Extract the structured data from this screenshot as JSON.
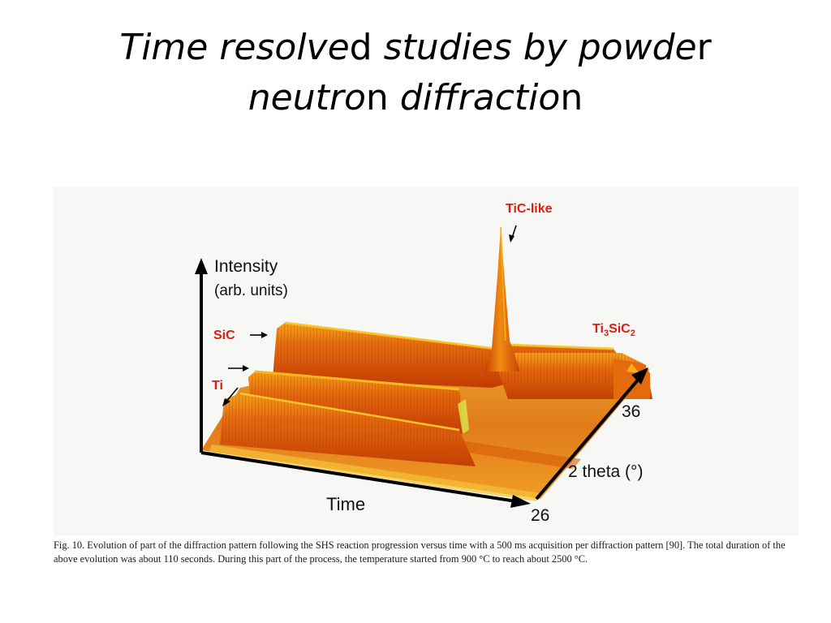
{
  "slide": {
    "title_runs": [
      {
        "text": "Time resolve",
        "italic": true
      },
      {
        "text": "d ",
        "italic": false
      },
      {
        "text": "studies by powde",
        "italic": true
      },
      {
        "text": "r",
        "italic": false
      },
      {
        "text": "neutro",
        "italic": true,
        "line_break_before": true
      },
      {
        "text": "n ",
        "italic": false
      },
      {
        "text": "diffractio",
        "italic": true
      },
      {
        "text": "n",
        "italic": false
      }
    ]
  },
  "figure": {
    "axis_labels": {
      "intensity": "Intensity",
      "intensity_units": "(arb. units)",
      "time": "Time",
      "two_theta": "2 theta (°)"
    },
    "tick_labels": {
      "two_theta_low": "26",
      "two_theta_high": "36"
    },
    "annotations": {
      "tic_like": "TiC-like",
      "sic": "SiC",
      "ti": "Ti",
      "ti3sic2_parts": [
        "Ti",
        "3",
        "SiC",
        "2"
      ]
    },
    "colors": {
      "surface_dark": "#c23d00",
      "surface_mid": "#e8620a",
      "surface_light": "#f5a21a",
      "highlight": "#ffd23a",
      "label_red": "#e11b10"
    }
  },
  "caption": {
    "text": "Fig. 10. Evolution of part of the diffraction pattern following the SHS reaction progression versus time with a 500 ms acquisition per diffraction pattern [90]. The total duration of the above evolution was about 110 seconds. During this part of the process, the temperature started from 900 °C to reach about 2500 °C."
  }
}
